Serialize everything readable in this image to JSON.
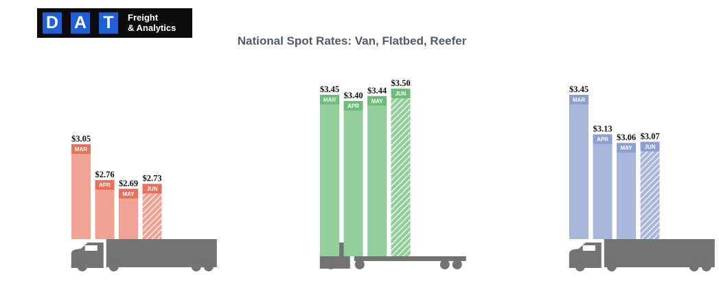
{
  "logo": {
    "letters": [
      "D",
      "A",
      "T"
    ],
    "line1": "Freight",
    "line2": "& Analytics",
    "bg_color": "#0b0b0b",
    "box_color": "#1f5fd6"
  },
  "chart_data": {
    "type": "bar",
    "title": "National Spot Rates: Van, Flatbed, Reefer",
    "categories": [
      "MAR",
      "APR",
      "MAY",
      "JUN"
    ],
    "value_prefix": "$",
    "truck_color": "#737373",
    "groups": [
      {
        "trailer": "van",
        "color": "#f2a293",
        "label_color": "#e8705c",
        "values": [
          3.05,
          2.76,
          2.69,
          2.73
        ]
      },
      {
        "trailer": "flatbed",
        "color": "#93cf9b",
        "label_color": "#6cbd77",
        "values": [
          3.45,
          3.4,
          3.44,
          3.5
        ]
      },
      {
        "trailer": "reefer",
        "color": "#a9b7da",
        "label_color": "#8c9fce",
        "values": [
          3.45,
          3.13,
          3.06,
          3.07
        ]
      }
    ],
    "hatched_category": "JUN"
  }
}
